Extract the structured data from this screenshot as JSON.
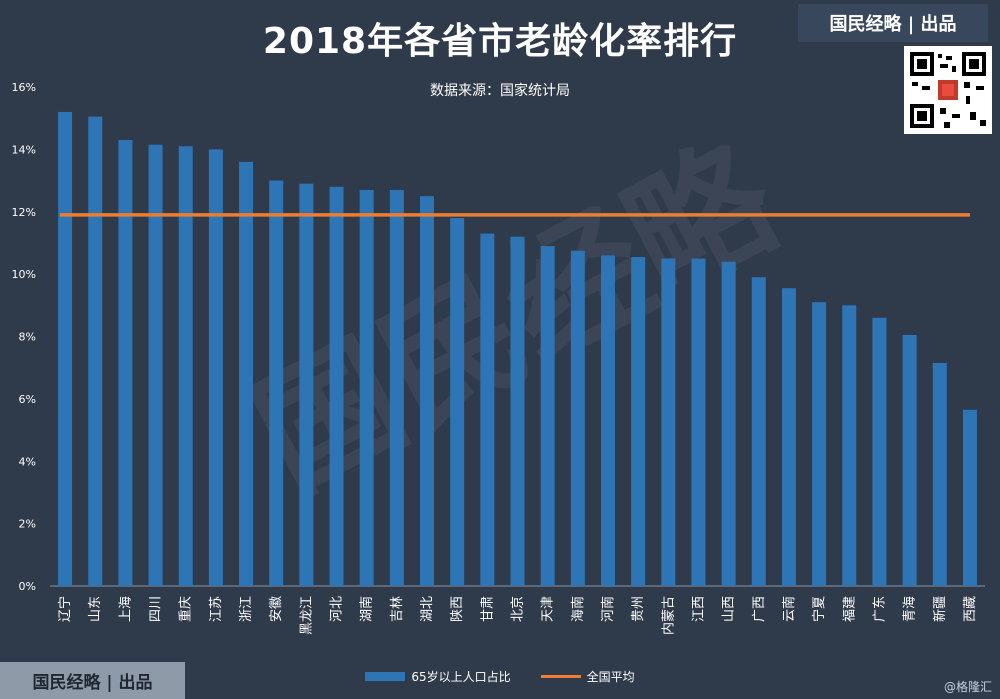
{
  "header": {
    "title": "2018年各省市老龄化率排行",
    "source": "数据来源：国家统计局",
    "brand": "国民经略 | 出品",
    "credit": "@格隆汇",
    "watermark": "国民经略"
  },
  "colors": {
    "background": "#2f3a4b",
    "bar": "#2e75b6",
    "line": "#ed7d31",
    "text": "#ffffff"
  },
  "chart_data": {
    "type": "bar",
    "categories": [
      "辽宁",
      "山东",
      "上海",
      "四川",
      "重庆",
      "江苏",
      "浙江",
      "安徽",
      "黑龙江",
      "河北",
      "湖南",
      "吉林",
      "湖北",
      "陕西",
      "甘肃",
      "北京",
      "天津",
      "海南",
      "河南",
      "贵州",
      "内蒙古",
      "江西",
      "山西",
      "广西",
      "云南",
      "宁夏",
      "福建",
      "广东",
      "青海",
      "新疆",
      "西藏"
    ],
    "series": [
      {
        "name": "65岁以上人口占比",
        "type": "bar",
        "values": [
          15.2,
          15.05,
          14.3,
          14.15,
          14.1,
          14.0,
          13.6,
          13.0,
          12.9,
          12.8,
          12.7,
          12.7,
          12.5,
          11.8,
          11.3,
          11.2,
          10.9,
          10.75,
          10.6,
          10.55,
          10.5,
          10.5,
          10.4,
          9.9,
          9.55,
          9.1,
          9.0,
          8.6,
          8.05,
          7.15,
          5.65
        ]
      },
      {
        "name": "全国平均",
        "type": "line",
        "value": 11.9
      }
    ],
    "y_ticks": [
      "0%",
      "2%",
      "4%",
      "6%",
      "8%",
      "10%",
      "12%",
      "14%",
      "16%"
    ],
    "ylim": [
      0,
      16
    ],
    "legend_position": "bottom",
    "grid": false
  }
}
